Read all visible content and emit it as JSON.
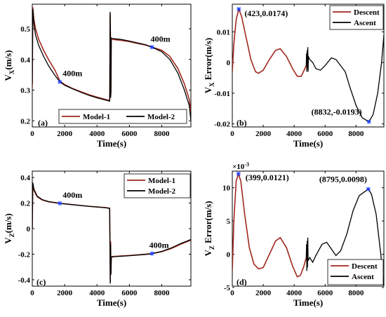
{
  "chart_data": [
    {
      "id": "a",
      "type": "line",
      "panel_label": "(a)",
      "xlabel": "Time(s)",
      "ylabel": "V_X(m/s)",
      "xlim": [
        0,
        9800
      ],
      "ylim": [
        0.18,
        0.58
      ],
      "xticks": [
        0,
        2000,
        4000,
        6000,
        8000
      ],
      "xtick_labels": [
        "0",
        "2000",
        "4000",
        "6000",
        "8000"
      ],
      "yticks": [
        0.2,
        0.3,
        0.4,
        0.5
      ],
      "ytick_labels": [
        "0.2",
        "0.3",
        "0.4",
        "0.5"
      ],
      "legend_position": "bottom",
      "series": [
        {
          "name": "Model-1",
          "color": "#A0281E",
          "points": [
            [
              0,
              0.31
            ],
            [
              30,
              0.57
            ],
            [
              100,
              0.53
            ],
            [
              200,
              0.5
            ],
            [
              400,
              0.465
            ],
            [
              700,
              0.43
            ],
            [
              1000,
              0.4
            ],
            [
              1400,
              0.365
            ],
            [
              1700,
              0.33
            ],
            [
              2000,
              0.318
            ],
            [
              2500,
              0.305
            ],
            [
              3000,
              0.295
            ],
            [
              3500,
              0.285
            ],
            [
              4000,
              0.277
            ],
            [
              4500,
              0.27
            ],
            [
              4780,
              0.266
            ],
            [
              4790,
              0.29
            ],
            [
              4810,
              0.55
            ],
            [
              4830,
              0.475
            ],
            [
              4840,
              0.28
            ],
            [
              4860,
              0.3
            ],
            [
              4880,
              0.47
            ],
            [
              5000,
              0.465
            ],
            [
              5500,
              0.462
            ],
            [
              6000,
              0.458
            ],
            [
              6500,
              0.452
            ],
            [
              7000,
              0.447
            ],
            [
              7400,
              0.44
            ],
            [
              8000,
              0.43
            ],
            [
              8500,
              0.41
            ],
            [
              9000,
              0.37
            ],
            [
              9400,
              0.32
            ],
            [
              9700,
              0.27
            ],
            [
              9800,
              0.23
            ]
          ]
        },
        {
          "name": "Model-2",
          "color": "#000000",
          "points": [
            [
              0,
              0.32
            ],
            [
              30,
              0.565
            ],
            [
              100,
              0.515
            ],
            [
              200,
              0.48
            ],
            [
              400,
              0.445
            ],
            [
              700,
              0.41
            ],
            [
              1000,
              0.38
            ],
            [
              1400,
              0.348
            ],
            [
              1700,
              0.327
            ],
            [
              2000,
              0.316
            ],
            [
              2500,
              0.304
            ],
            [
              3000,
              0.293
            ],
            [
              3500,
              0.283
            ],
            [
              4000,
              0.275
            ],
            [
              4500,
              0.268
            ],
            [
              4780,
              0.264
            ],
            [
              4790,
              0.285
            ],
            [
              4810,
              0.555
            ],
            [
              4830,
              0.48
            ],
            [
              4840,
              0.275
            ],
            [
              4860,
              0.295
            ],
            [
              4880,
              0.468
            ],
            [
              5000,
              0.468
            ],
            [
              5500,
              0.465
            ],
            [
              6000,
              0.46
            ],
            [
              6500,
              0.454
            ],
            [
              7000,
              0.448
            ],
            [
              7400,
              0.44
            ],
            [
              8000,
              0.425
            ],
            [
              8500,
              0.4
            ],
            [
              9000,
              0.355
            ],
            [
              9400,
              0.3
            ],
            [
              9700,
              0.25
            ],
            [
              9800,
              0.2
            ]
          ]
        }
      ],
      "markers": [
        {
          "x": 1700,
          "y": 0.327,
          "label": "400m"
        },
        {
          "x": 7400,
          "y": 0.44,
          "label": "400m"
        }
      ]
    },
    {
      "id": "b",
      "type": "line",
      "panel_label": "(b)",
      "xlabel": "Time(s)",
      "ylabel": "V_X Error(m/s)",
      "xlim": [
        0,
        9800
      ],
      "ylim": [
        -0.021,
        0.019
      ],
      "xticks": [
        0,
        2000,
        4000,
        6000,
        8000
      ],
      "xtick_labels": [
        "0",
        "2000",
        "4000",
        "6000",
        "8000"
      ],
      "yticks": [
        -0.02,
        -0.01,
        0,
        0.01
      ],
      "ytick_labels": [
        "-0.02",
        "-0.01",
        "0",
        "0.01"
      ],
      "legend_position": "top-right",
      "series": [
        {
          "name": "Descent",
          "color": "#A0281E",
          "points": [
            [
              0,
              -0.003
            ],
            [
              100,
              0.006
            ],
            [
              250,
              0.014
            ],
            [
              423,
              0.0174
            ],
            [
              600,
              0.015
            ],
            [
              900,
              0.008
            ],
            [
              1200,
              0.001
            ],
            [
              1500,
              -0.003
            ],
            [
              1700,
              -0.0035
            ],
            [
              2000,
              -0.0025
            ],
            [
              2400,
              0.001
            ],
            [
              2800,
              0.004
            ],
            [
              3100,
              0.0045
            ],
            [
              3500,
              0.002
            ],
            [
              3900,
              -0.002
            ],
            [
              4200,
              -0.0045
            ],
            [
              4450,
              -0.0045
            ],
            [
              4600,
              -0.003
            ],
            [
              4780,
              -0.001
            ]
          ]
        },
        {
          "name": "Ascent",
          "color": "#000000",
          "points": [
            [
              4780,
              -0.001
            ],
            [
              4800,
              0.003
            ],
            [
              4820,
              -0.003
            ],
            [
              4840,
              0.004
            ],
            [
              4860,
              -0.002
            ],
            [
              4880,
              0.005
            ],
            [
              4900,
              -0.003
            ],
            [
              4920,
              0.002
            ],
            [
              5000,
              0.001
            ],
            [
              5200,
              0.0
            ],
            [
              5400,
              -0.002
            ],
            [
              5700,
              -0.0025
            ],
            [
              6000,
              -0.001
            ],
            [
              6400,
              0.0015
            ],
            [
              6700,
              0.001
            ],
            [
              7000,
              -0.001
            ],
            [
              7300,
              -0.003
            ],
            [
              7600,
              -0.008
            ],
            [
              8000,
              -0.014
            ],
            [
              8400,
              -0.018
            ],
            [
              8832,
              -0.0193
            ],
            [
              9100,
              -0.017
            ],
            [
              9400,
              -0.01
            ],
            [
              9650,
              0.0
            ],
            [
              9800,
              0.009
            ]
          ]
        }
      ],
      "markers": [
        {
          "x": 423,
          "y": 0.0174,
          "label": "(423,0.0174)"
        },
        {
          "x": 8832,
          "y": -0.0193,
          "label": "(8832,-0.0193)"
        }
      ]
    },
    {
      "id": "c",
      "type": "line",
      "panel_label": "(c)",
      "xlabel": "Time(s)",
      "ylabel": "V_Z(m/s)",
      "xlim": [
        0,
        9800
      ],
      "ylim": [
        -0.45,
        0.45
      ],
      "xticks": [
        0,
        2000,
        4000,
        6000,
        8000
      ],
      "xtick_labels": [
        "0",
        "2000",
        "4000",
        "6000",
        "8000"
      ],
      "yticks": [
        -0.4,
        -0.2,
        0,
        0.2,
        0.4
      ],
      "ytick_labels": [
        "-0.4",
        "-0.2",
        "0",
        "0.2",
        "0.4"
      ],
      "legend_position": "top-right",
      "series": [
        {
          "name": "Model-1",
          "color": "#A0281E",
          "points": [
            [
              0,
              0.0
            ],
            [
              30,
              0.35
            ],
            [
              100,
              0.3
            ],
            [
              300,
              0.25
            ],
            [
              600,
              0.225
            ],
            [
              1000,
              0.21
            ],
            [
              1700,
              0.198
            ],
            [
              2500,
              0.188
            ],
            [
              3500,
              0.175
            ],
            [
              4500,
              0.165
            ],
            [
              4780,
              0.16
            ],
            [
              4800,
              -0.1
            ],
            [
              4820,
              -0.42
            ],
            [
              4840,
              -0.1
            ],
            [
              4860,
              -0.35
            ],
            [
              4880,
              -0.22
            ],
            [
              5000,
              -0.218
            ],
            [
              6000,
              -0.21
            ],
            [
              7000,
              -0.2
            ],
            [
              7400,
              -0.195
            ],
            [
              8000,
              -0.18
            ],
            [
              8600,
              -0.155
            ],
            [
              9200,
              -0.12
            ],
            [
              9800,
              -0.09
            ]
          ]
        },
        {
          "name": "Model-2",
          "color": "#000000",
          "points": [
            [
              0,
              0.0
            ],
            [
              30,
              0.36
            ],
            [
              100,
              0.31
            ],
            [
              300,
              0.255
            ],
            [
              600,
              0.228
            ],
            [
              1000,
              0.212
            ],
            [
              1700,
              0.198
            ],
            [
              2500,
              0.187
            ],
            [
              3500,
              0.174
            ],
            [
              4500,
              0.164
            ],
            [
              4780,
              0.158
            ],
            [
              4800,
              -0.12
            ],
            [
              4820,
              -0.43
            ],
            [
              4840,
              -0.12
            ],
            [
              4860,
              -0.36
            ],
            [
              4880,
              -0.225
            ],
            [
              5000,
              -0.22
            ],
            [
              6000,
              -0.212
            ],
            [
              7000,
              -0.202
            ],
            [
              7400,
              -0.196
            ],
            [
              8000,
              -0.178
            ],
            [
              8600,
              -0.15
            ],
            [
              9200,
              -0.115
            ],
            [
              9800,
              -0.085
            ]
          ]
        }
      ],
      "markers": [
        {
          "x": 1700,
          "y": 0.198,
          "label": "400m"
        },
        {
          "x": 7400,
          "y": -0.195,
          "label": "400m"
        }
      ]
    },
    {
      "id": "d",
      "type": "line",
      "panel_label": "(d)",
      "xlabel": "Time(s)",
      "ylabel": "V_Z Error(m/s)",
      "xlim": [
        0,
        9800
      ],
      "ylim": [
        -4.8,
        12.5
      ],
      "y_exponent_label": "×10",
      "y_exponent_power": "-3",
      "xticks": [
        0,
        2000,
        4000,
        6000,
        8000
      ],
      "xtick_labels": [
        "0",
        "2000",
        "4000",
        "6000",
        "8000"
      ],
      "yticks": [
        -5,
        0,
        5,
        10
      ],
      "ytick_labels": [
        "-5",
        "0",
        "5",
        "10"
      ],
      "legend_position": "bottom-right",
      "series": [
        {
          "name": "Descent",
          "color": "#A0281E",
          "points": [
            [
              0,
              -2.5
            ],
            [
              100,
              5
            ],
            [
              250,
              11
            ],
            [
              399,
              12.1
            ],
            [
              550,
              11
            ],
            [
              800,
              6
            ],
            [
              1100,
              1
            ],
            [
              1400,
              -1.5
            ],
            [
              1700,
              -2.2
            ],
            [
              2000,
              -2
            ],
            [
              2400,
              0
            ],
            [
              2800,
              2
            ],
            [
              3100,
              2.5
            ],
            [
              3500,
              1
            ],
            [
              3900,
              -1.8
            ],
            [
              4200,
              -3.4
            ],
            [
              4400,
              -3.2
            ],
            [
              4600,
              -2
            ],
            [
              4780,
              -0.5
            ]
          ]
        },
        {
          "name": "Ascent",
          "color": "#000000",
          "points": [
            [
              4780,
              -0.5
            ],
            [
              4800,
              1.5
            ],
            [
              4820,
              -2.5
            ],
            [
              4840,
              2
            ],
            [
              4860,
              -2
            ],
            [
              4880,
              2.5
            ],
            [
              4900,
              -1
            ],
            [
              5000,
              -0.5
            ],
            [
              5200,
              -1.2
            ],
            [
              5400,
              -0.2
            ],
            [
              5800,
              1.5
            ],
            [
              6100,
              1.8
            ],
            [
              6400,
              0.8
            ],
            [
              6700,
              -0.2
            ],
            [
              7000,
              0.5
            ],
            [
              7400,
              3
            ],
            [
              7800,
              6.5
            ],
            [
              8200,
              8.8
            ],
            [
              8795,
              9.8
            ],
            [
              9000,
              9
            ],
            [
              9300,
              6
            ],
            [
              9600,
              0
            ],
            [
              9800,
              -5
            ]
          ]
        }
      ],
      "markers": [
        {
          "x": 399,
          "y": 12.1,
          "label": "(399,0.0121)"
        },
        {
          "x": 8795,
          "y": 9.8,
          "label": "(8795,0.0098)"
        }
      ]
    }
  ]
}
